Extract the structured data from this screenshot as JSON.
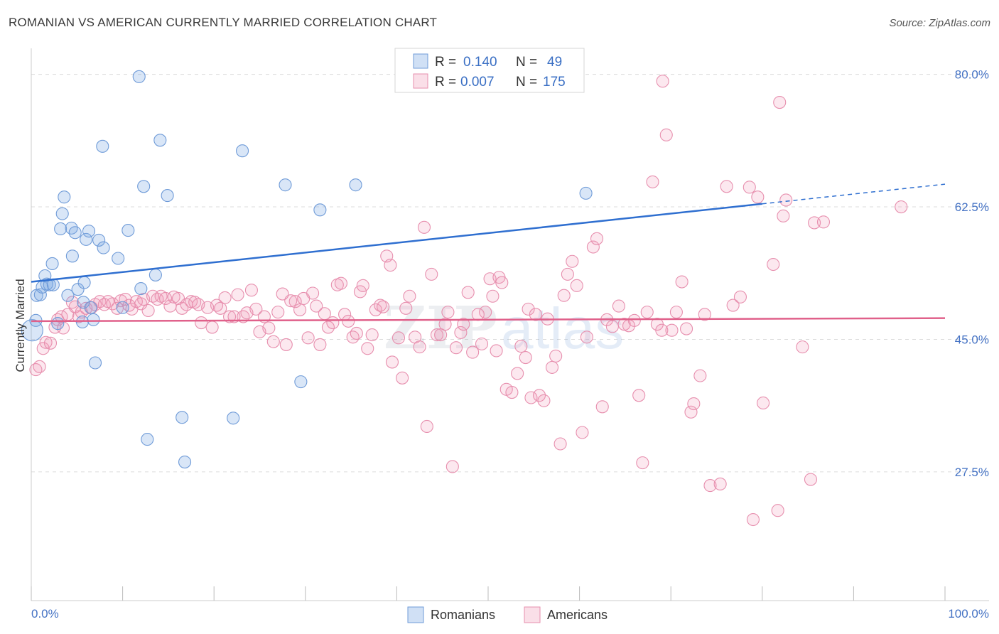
{
  "title": "ROMANIAN VS AMERICAN CURRENTLY MARRIED CORRELATION CHART",
  "source": "Source: ZipAtlas.com",
  "colors": {
    "blue_fill": "rgba(120,165,225,0.28)",
    "blue_stroke": "#6f9bd8",
    "blue_line": "#2f6fd0",
    "pink_fill": "rgba(240,150,180,0.22)",
    "pink_stroke": "#e78fae",
    "pink_line": "#e0608a",
    "grid": "#dcdcdc",
    "axis_text": "#4472c4"
  },
  "chart_data": {
    "type": "scatter",
    "title": "ROMANIAN VS AMERICAN CURRENTLY MARRIED CORRELATION CHART",
    "xlabel": "",
    "ylabel": "Currently Married",
    "xlim": [
      0,
      100
    ],
    "ylim": [
      10.5,
      82.5
    ],
    "x_tick_labels": [
      "0.0%",
      "100.0%"
    ],
    "y_ticks": [
      27.5,
      45.0,
      62.5,
      80.0
    ],
    "y_tick_labels": [
      "27.5%",
      "45.0%",
      "62.5%",
      "80.0%"
    ],
    "grid": true,
    "legend": {
      "position": "top-center",
      "entries": [
        {
          "r_label": "R =",
          "r_value": "0.140",
          "n_label": "N =",
          "n_value": "49"
        },
        {
          "r_label": "R =",
          "r_value": "0.007",
          "n_label": "N =",
          "n_value": "175"
        }
      ]
    },
    "bottom_legend": [
      "Romanians",
      "Americans"
    ],
    "series": [
      {
        "name": "Romanians",
        "r": 0.14,
        "n": 49,
        "trend": {
          "x0": 0,
          "y0": 52.6,
          "x1": 80,
          "y1": 62.9,
          "dashed_to_x": 100,
          "dashed_to_y": 65.5
        },
        "points": [
          [
            0.1,
            46.2,
            2
          ],
          [
            0.5,
            47.5,
            1
          ],
          [
            0.6,
            50.8,
            1
          ],
          [
            1.0,
            50.9,
            1
          ],
          [
            1.2,
            51.9,
            1
          ],
          [
            1.5,
            53.4,
            1
          ],
          [
            1.7,
            52.3,
            1
          ],
          [
            2.0,
            52.2,
            1
          ],
          [
            2.4,
            52.2,
            1
          ],
          [
            2.3,
            55.0,
            1
          ],
          [
            2.9,
            47.1,
            1
          ],
          [
            3.2,
            59.6,
            1
          ],
          [
            3.4,
            61.6,
            1
          ],
          [
            3.6,
            63.8,
            1
          ],
          [
            4.0,
            50.8,
            1
          ],
          [
            4.4,
            59.7,
            1
          ],
          [
            4.5,
            56.0,
            1
          ],
          [
            4.8,
            59.1,
            1
          ],
          [
            5.1,
            51.6,
            1
          ],
          [
            5.6,
            47.3,
            1
          ],
          [
            5.7,
            49.9,
            1
          ],
          [
            5.8,
            52.5,
            1
          ],
          [
            6.0,
            58.2,
            1
          ],
          [
            6.3,
            59.3,
            1
          ],
          [
            6.5,
            49.2,
            1
          ],
          [
            6.8,
            47.6,
            1
          ],
          [
            7.0,
            41.9,
            1
          ],
          [
            7.4,
            58.1,
            1
          ],
          [
            7.9,
            57.1,
            1
          ],
          [
            7.8,
            70.5,
            1
          ],
          [
            9.5,
            55.7,
            1
          ],
          [
            10.0,
            49.2,
            1
          ],
          [
            10.6,
            59.4,
            1
          ],
          [
            11.8,
            79.7,
            1
          ],
          [
            12.0,
            51.7,
            1
          ],
          [
            12.3,
            65.2,
            1
          ],
          [
            12.7,
            31.8,
            1
          ],
          [
            13.6,
            53.5,
            1
          ],
          [
            14.1,
            71.3,
            1
          ],
          [
            14.9,
            64.0,
            1
          ],
          [
            16.5,
            34.7,
            1
          ],
          [
            16.8,
            28.8,
            1
          ],
          [
            22.1,
            34.6,
            1
          ],
          [
            23.1,
            69.9,
            1
          ],
          [
            27.8,
            65.4,
            1
          ],
          [
            29.5,
            39.4,
            1
          ],
          [
            31.6,
            62.1,
            1
          ],
          [
            35.5,
            65.4,
            1
          ],
          [
            60.7,
            64.3,
            1
          ]
        ]
      },
      {
        "name": "Americans",
        "r": 0.007,
        "n": 175,
        "trend": {
          "x0": 0,
          "y0": 47.4,
          "x1": 100,
          "y1": 47.8
        },
        "points": [
          [
            0.5,
            41.0,
            1
          ],
          [
            0.9,
            41.4,
            1
          ],
          [
            1.3,
            43.8,
            1
          ],
          [
            1.6,
            44.6,
            1
          ],
          [
            2.1,
            44.5,
            1
          ],
          [
            2.6,
            46.6,
            1
          ],
          [
            2.9,
            47.6,
            1
          ],
          [
            3.3,
            48.0,
            1
          ],
          [
            3.5,
            46.5,
            1
          ],
          [
            4.0,
            48.3,
            1
          ],
          [
            4.5,
            49.9,
            1
          ],
          [
            4.8,
            49.3,
            1
          ],
          [
            5.2,
            48.0,
            1
          ],
          [
            5.5,
            48.6,
            1
          ],
          [
            6.0,
            49.1,
            1
          ],
          [
            6.6,
            49.2,
            1
          ],
          [
            7.0,
            49.6,
            1
          ],
          [
            7.5,
            50.0,
            1
          ],
          [
            8.0,
            49.6,
            1
          ],
          [
            8.4,
            50.0,
            1
          ],
          [
            8.9,
            49.7,
            1
          ],
          [
            9.4,
            49.1,
            1
          ],
          [
            9.8,
            50.1,
            1
          ],
          [
            10.3,
            50.3,
            1
          ],
          [
            10.7,
            49.5,
            1
          ],
          [
            11.0,
            49.0,
            1
          ],
          [
            11.5,
            50.0,
            1
          ],
          [
            12.0,
            49.7,
            1
          ],
          [
            12.3,
            50.3,
            1
          ],
          [
            12.8,
            48.8,
            1
          ],
          [
            13.3,
            50.7,
            1
          ],
          [
            13.8,
            50.3,
            1
          ],
          [
            14.2,
            50.7,
            1
          ],
          [
            14.7,
            50.4,
            1
          ],
          [
            15.2,
            49.4,
            1
          ],
          [
            15.6,
            50.6,
            1
          ],
          [
            16.1,
            50.4,
            1
          ],
          [
            16.5,
            49.1,
            1
          ],
          [
            17.0,
            49.6,
            1
          ],
          [
            17.5,
            50.0,
            1
          ],
          [
            17.9,
            49.9,
            1
          ],
          [
            18.3,
            49.6,
            1
          ],
          [
            18.6,
            47.2,
            1
          ],
          [
            19.3,
            49.2,
            1
          ],
          [
            19.8,
            46.6,
            1
          ],
          [
            20.3,
            49.5,
            1
          ],
          [
            20.7,
            49.1,
            1
          ],
          [
            21.2,
            50.5,
            1
          ],
          [
            21.7,
            48.0,
            1
          ],
          [
            22.2,
            48.0,
            1
          ],
          [
            22.6,
            50.9,
            1
          ],
          [
            23.2,
            48.0,
            1
          ],
          [
            23.6,
            48.5,
            1
          ],
          [
            24.1,
            51.5,
            1
          ],
          [
            24.6,
            49.0,
            1
          ],
          [
            25.0,
            46.0,
            1
          ],
          [
            25.5,
            48.0,
            1
          ],
          [
            26.0,
            46.5,
            1
          ],
          [
            26.5,
            44.7,
            1
          ],
          [
            27.0,
            48.6,
            1
          ],
          [
            27.5,
            51.0,
            1
          ],
          [
            27.9,
            44.3,
            1
          ],
          [
            28.4,
            50.1,
            1
          ],
          [
            28.9,
            50.0,
            1
          ],
          [
            29.4,
            48.9,
            1
          ],
          [
            29.8,
            50.4,
            1
          ],
          [
            30.3,
            45.2,
            1
          ],
          [
            30.8,
            51.1,
            1
          ],
          [
            31.2,
            49.4,
            1
          ],
          [
            31.6,
            44.3,
            1
          ],
          [
            32.1,
            48.4,
            1
          ],
          [
            32.5,
            46.6,
            1
          ],
          [
            33.0,
            47.2,
            1
          ],
          [
            33.5,
            52.2,
            1
          ],
          [
            33.9,
            52.4,
            1
          ],
          [
            34.3,
            48.3,
            1
          ],
          [
            34.7,
            47.4,
            1
          ],
          [
            35.2,
            45.3,
            1
          ],
          [
            35.6,
            45.8,
            1
          ],
          [
            36.0,
            51.3,
            1
          ],
          [
            36.3,
            52.1,
            1
          ],
          [
            36.8,
            43.8,
            1
          ],
          [
            37.3,
            45.6,
            1
          ],
          [
            37.7,
            48.9,
            1
          ],
          [
            38.2,
            49.5,
            1
          ],
          [
            38.5,
            49.3,
            1
          ],
          [
            38.9,
            56.0,
            1
          ],
          [
            39.3,
            54.8,
            1
          ],
          [
            39.5,
            42.0,
            1
          ],
          [
            40.2,
            45.2,
            1
          ],
          [
            40.6,
            39.9,
            1
          ],
          [
            41.0,
            49.1,
            1
          ],
          [
            41.4,
            50.7,
            1
          ],
          [
            42.0,
            45.3,
            1
          ],
          [
            42.5,
            44.0,
            1
          ],
          [
            43.0,
            59.8,
            1
          ],
          [
            43.3,
            33.5,
            1
          ],
          [
            43.8,
            53.6,
            1
          ],
          [
            44.4,
            45.6,
            1
          ],
          [
            44.8,
            45.6,
            1
          ],
          [
            45.3,
            47.0,
            1
          ],
          [
            45.6,
            48.6,
            1
          ],
          [
            46.1,
            28.2,
            1
          ],
          [
            46.5,
            43.9,
            1
          ],
          [
            47.0,
            45.9,
            1
          ],
          [
            47.3,
            47.0,
            1
          ],
          [
            47.8,
            51.2,
            1
          ],
          [
            48.3,
            43.3,
            1
          ],
          [
            48.9,
            48.3,
            1
          ],
          [
            49.3,
            44.4,
            1
          ],
          [
            49.7,
            48.6,
            1
          ],
          [
            50.2,
            53.0,
            1
          ],
          [
            50.5,
            50.7,
            1
          ],
          [
            50.9,
            43.5,
            1
          ],
          [
            51.2,
            53.2,
            1
          ],
          [
            51.5,
            52.5,
            1
          ],
          [
            52.0,
            38.4,
            1
          ],
          [
            52.6,
            38.0,
            1
          ],
          [
            53.2,
            40.5,
            1
          ],
          [
            53.6,
            44.1,
            1
          ],
          [
            54.1,
            42.6,
            1
          ],
          [
            54.4,
            49.0,
            1
          ],
          [
            54.7,
            37.3,
            1
          ],
          [
            55.2,
            48.3,
            1
          ],
          [
            55.6,
            37.6,
            1
          ],
          [
            56.1,
            36.9,
            1
          ],
          [
            56.5,
            47.7,
            1
          ],
          [
            57.0,
            41.3,
            1
          ],
          [
            57.4,
            42.8,
            1
          ],
          [
            57.9,
            31.2,
            1
          ],
          [
            58.3,
            50.8,
            1
          ],
          [
            58.7,
            53.6,
            1
          ],
          [
            59.2,
            55.3,
            1
          ],
          [
            59.7,
            52.1,
            1
          ],
          [
            60.3,
            32.7,
            1
          ],
          [
            60.8,
            45.3,
            1
          ],
          [
            61.5,
            57.2,
            1
          ],
          [
            61.9,
            58.3,
            1
          ],
          [
            62.5,
            36.1,
            1
          ],
          [
            63.0,
            47.6,
            1
          ],
          [
            63.6,
            46.7,
            1
          ],
          [
            64.3,
            49.4,
            1
          ],
          [
            64.9,
            47.0,
            1
          ],
          [
            65.4,
            46.8,
            1
          ],
          [
            66.0,
            47.5,
            1
          ],
          [
            66.5,
            37.6,
            1
          ],
          [
            66.9,
            28.7,
            1
          ],
          [
            67.4,
            48.6,
            1
          ],
          [
            68.0,
            65.8,
            1
          ],
          [
            68.5,
            47.0,
            1
          ],
          [
            69.0,
            46.2,
            1
          ],
          [
            69.5,
            72.0,
            1
          ],
          [
            70.1,
            46.2,
            1
          ],
          [
            70.6,
            48.6,
            1
          ],
          [
            71.2,
            52.6,
            1
          ],
          [
            71.7,
            46.4,
            1
          ],
          [
            72.2,
            35.4,
            1
          ],
          [
            72.5,
            36.5,
            1
          ],
          [
            73.2,
            40.2,
            1
          ],
          [
            73.7,
            48.3,
            1
          ],
          [
            74.3,
            25.7,
            1
          ],
          [
            75.4,
            25.9,
            1
          ],
          [
            76.1,
            65.2,
            1
          ],
          [
            76.8,
            49.5,
            1
          ],
          [
            77.6,
            50.6,
            1
          ],
          [
            78.6,
            65.1,
            1
          ],
          [
            79.5,
            63.8,
            1
          ],
          [
            80.1,
            36.6,
            1
          ],
          [
            81.2,
            54.9,
            1
          ],
          [
            81.9,
            76.3,
            1
          ],
          [
            82.3,
            61.3,
            1
          ],
          [
            82.6,
            63.4,
            1
          ],
          [
            84.4,
            44.0,
            1
          ],
          [
            85.7,
            60.4,
            1
          ],
          [
            86.7,
            60.5,
            1
          ],
          [
            69.1,
            79.1,
            1
          ],
          [
            79.0,
            21.2,
            1
          ],
          [
            81.7,
            22.4,
            1
          ],
          [
            85.3,
            26.5,
            1
          ],
          [
            95.2,
            62.5,
            1
          ]
        ]
      }
    ]
  }
}
